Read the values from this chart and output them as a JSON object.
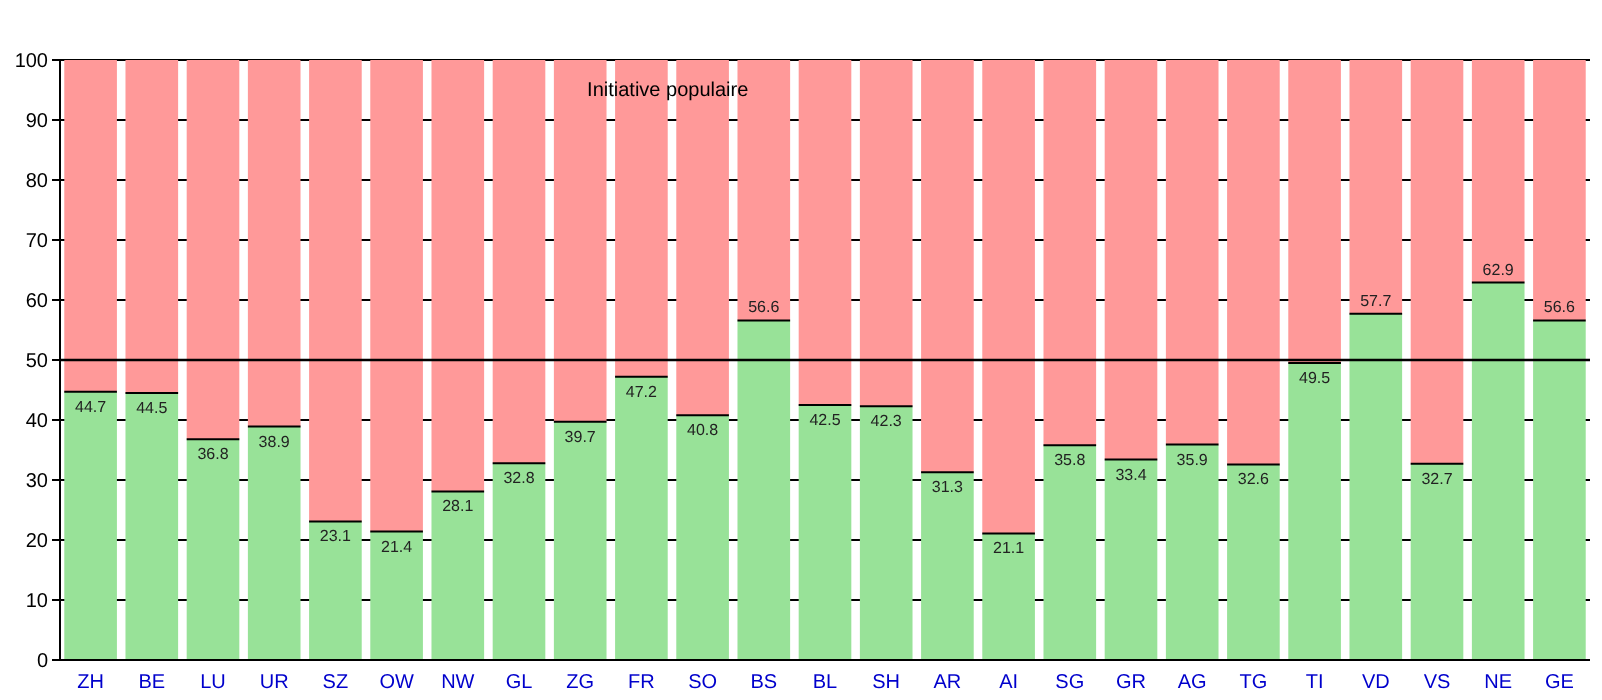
{
  "chart_data": {
    "type": "bar",
    "title": "Initiative populaire",
    "stacked": true,
    "categories": [
      "ZH",
      "BE",
      "LU",
      "UR",
      "SZ",
      "OW",
      "NW",
      "GL",
      "ZG",
      "FR",
      "SO",
      "BS",
      "BL",
      "SH",
      "AR",
      "AI",
      "SG",
      "GR",
      "AG",
      "TG",
      "TI",
      "VD",
      "VS",
      "NE",
      "GE"
    ],
    "series": [
      {
        "color": "#98e298",
        "values": [
          44.7,
          44.5,
          36.8,
          38.9,
          23.1,
          21.4,
          28.1,
          32.8,
          39.7,
          47.2,
          40.8,
          56.6,
          42.5,
          42.3,
          31.3,
          21.1,
          35.8,
          33.4,
          35.9,
          32.6,
          49.5,
          57.7,
          32.7,
          62.9,
          56.6
        ],
        "value_labels": [
          "44.7",
          "44.5",
          "36.8",
          "38.9",
          "23.1",
          "21.4",
          "28.1",
          "32.8",
          "39.7",
          "47.2",
          "40.8",
          "56.6",
          "42.5",
          "42.3",
          "31.3",
          "21.1",
          "35.8",
          "33.4",
          "35.9",
          "32.6",
          "49.5",
          "57.7",
          "32.7",
          "62.9",
          "56.6"
        ]
      },
      {
        "color": "#ff9999",
        "values": [
          55.3,
          55.5,
          63.2,
          61.1,
          76.9,
          78.6,
          71.9,
          67.2,
          60.3,
          52.8,
          59.2,
          43.4,
          57.5,
          57.7,
          68.7,
          78.9,
          64.2,
          66.6,
          64.1,
          67.4,
          50.5,
          42.3,
          67.3,
          37.1,
          43.4
        ]
      }
    ],
    "ylim": [
      0,
      100
    ],
    "yticks": [
      0,
      10,
      20,
      30,
      40,
      50,
      60,
      70,
      80,
      90,
      100
    ],
    "grid": "y",
    "ref_lines": [
      {
        "axis": "y",
        "value": 50
      }
    ]
  }
}
